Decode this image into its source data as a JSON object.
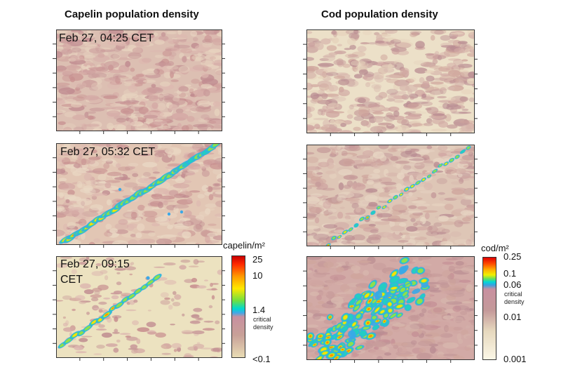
{
  "chart_data": [
    {
      "type": "heatmap",
      "title": "Capelin population density",
      "panels": [
        {
          "time_label": "Feb 27, 04:25 CET",
          "pattern": "diffuse",
          "peak_level": 0.3
        },
        {
          "time_label": "Feb 27, 05:32 CET",
          "pattern": "band",
          "peak_level": 1.0
        },
        {
          "time_label": "Feb 27, 09:15 CET",
          "pattern": "band-sparse",
          "peak_level": 0.85
        }
      ],
      "colorbar": {
        "unit": "capelin/m²",
        "ticks": [
          "25",
          "10",
          "1.4",
          "<0.1"
        ],
        "critical_label": "critical density",
        "critical_value": "1.4"
      }
    },
    {
      "type": "heatmap",
      "title": "Cod population density",
      "panels": [
        {
          "pattern": "diffuse",
          "peak_level": 0.25
        },
        {
          "pattern": "thin-band",
          "peak_level": 0.8
        },
        {
          "pattern": "cluster",
          "peak_level": 1.0
        }
      ],
      "colorbar": {
        "unit": "cod/m²",
        "ticks": [
          "0.25",
          "0.1",
          "0.06",
          "0.01",
          "0.001"
        ],
        "critical_label": "critical density",
        "critical_value": "0.06"
      }
    }
  ]
}
